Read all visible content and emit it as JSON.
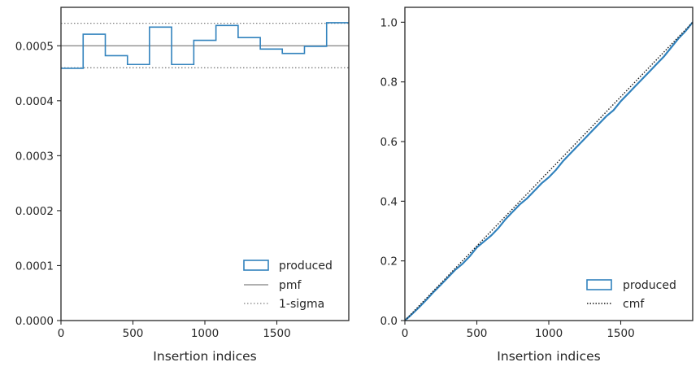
{
  "chart_data": [
    {
      "type": "histogram-step",
      "xlabel": "Insertion indices",
      "ylabel": "",
      "xlim": [
        0,
        2000
      ],
      "ylim": [
        0,
        0.00057
      ],
      "x_ticks": [
        "0",
        "500",
        "1000",
        "1500"
      ],
      "y_ticks": [
        "0.0000",
        "0.0001",
        "0.0002",
        "0.0003",
        "0.0004",
        "0.0005"
      ],
      "bin_edges": [
        0,
        154,
        308,
        462,
        615,
        769,
        923,
        1077,
        1231,
        1385,
        1538,
        1692,
        1846,
        2000
      ],
      "values": [
        0.000459,
        0.000521,
        0.000482,
        0.000466,
        0.000534,
        0.000466,
        0.00051,
        0.000537,
        0.000515,
        0.000494,
        0.000486,
        0.000499,
        0.000542
      ],
      "pmf": 0.0005,
      "sigma_band": [
        0.00046,
        0.000541
      ],
      "grid": false,
      "legend_position": "lower-right",
      "legend": [
        "produced",
        "pmf",
        "1-sigma"
      ],
      "colors": {
        "produced": "#3182bd",
        "pmf": "#808080",
        "sigma": "#808080"
      }
    },
    {
      "type": "line",
      "xlabel": "Insertion indices",
      "ylabel": "",
      "xlim": [
        0,
        2000
      ],
      "ylim": [
        0,
        1.05
      ],
      "x_ticks": [
        "0",
        "500",
        "1000",
        "1500"
      ],
      "y_ticks": [
        "0.0",
        "0.2",
        "0.4",
        "0.6",
        "0.8",
        "1.0"
      ],
      "series": [
        {
          "name": "produced",
          "x": [
            0,
            50,
            100,
            150,
            200,
            250,
            300,
            350,
            400,
            450,
            500,
            550,
            600,
            650,
            700,
            750,
            800,
            850,
            900,
            950,
            1000,
            1050,
            1100,
            1150,
            1200,
            1250,
            1300,
            1350,
            1400,
            1450,
            1500,
            1550,
            1600,
            1650,
            1700,
            1750,
            1800,
            1850,
            1900,
            1950,
            2000
          ],
          "y": [
            0.0,
            0.022,
            0.045,
            0.07,
            0.096,
            0.12,
            0.145,
            0.17,
            0.19,
            0.215,
            0.245,
            0.265,
            0.285,
            0.31,
            0.34,
            0.365,
            0.39,
            0.41,
            0.435,
            0.46,
            0.48,
            0.505,
            0.535,
            0.56,
            0.585,
            0.61,
            0.635,
            0.66,
            0.685,
            0.705,
            0.735,
            0.76,
            0.785,
            0.81,
            0.835,
            0.86,
            0.885,
            0.915,
            0.945,
            0.97,
            1.0
          ]
        },
        {
          "name": "cmf",
          "x": [
            0,
            2000
          ],
          "y": [
            0,
            1
          ]
        }
      ],
      "grid": false,
      "legend_position": "lower-right",
      "legend": [
        "produced",
        "cmf"
      ],
      "colors": {
        "produced": "#3182bd",
        "cmf": "#1a1a1a"
      }
    }
  ]
}
